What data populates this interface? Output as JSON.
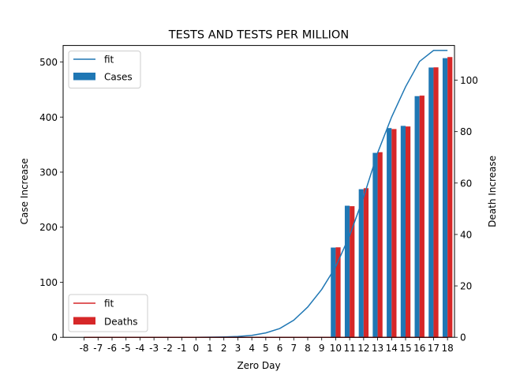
{
  "chart_data": {
    "type": "bar",
    "title": "TESTS AND TESTS PER MILLION",
    "xlabel": "Zero Day",
    "ylabel_left": "Case Increase",
    "ylabel_right": "Death Increase",
    "categories": [
      "-8",
      "-7",
      "-6",
      "-5",
      "-4",
      "-3",
      "-2",
      "-1",
      "0",
      "1",
      "2",
      "3",
      "4",
      "5",
      "6",
      "7",
      "8",
      "9",
      "10",
      "11",
      "12",
      "13",
      "14",
      "15",
      "16",
      "17",
      "18"
    ],
    "ylim_left": [
      0,
      530
    ],
    "ylim_right": [
      0,
      113.5
    ],
    "yticks_left": [
      0,
      100,
      200,
      300,
      400,
      500
    ],
    "yticks_right": [
      0,
      20,
      40,
      60,
      80,
      100
    ],
    "series": [
      {
        "name": "Cases",
        "axis": "left",
        "color": "#1f77b4",
        "values": [
          0,
          0,
          0,
          0,
          0,
          0,
          0,
          0,
          0,
          0,
          0,
          0,
          0,
          0,
          0,
          0,
          0,
          0,
          163,
          239,
          269,
          335,
          380,
          384,
          438,
          490,
          507
        ]
      },
      {
        "name": "Deaths",
        "axis": "right",
        "color": "#d62728",
        "values": [
          0,
          0,
          0,
          0,
          0,
          0,
          0,
          0,
          0,
          0,
          0,
          0,
          0,
          0,
          0,
          0,
          0,
          0,
          35,
          51,
          58,
          72,
          81,
          82,
          94,
          105,
          109
        ]
      },
      {
        "name": "fit",
        "type": "line",
        "axis": "left",
        "color": "#1f77b4",
        "values": [
          0,
          0,
          0,
          0,
          0,
          0,
          0,
          0,
          0,
          0.2,
          0.6,
          1.5,
          3.5,
          8,
          16,
          31,
          55,
          87,
          128,
          185,
          255,
          335,
          400,
          455,
          501,
          521,
          521
        ]
      },
      {
        "name": "fit",
        "type": "line",
        "axis": "right",
        "color": "#d62728",
        "values": [
          0,
          0,
          0,
          0,
          0,
          0,
          0,
          0,
          0,
          0,
          0,
          0,
          0,
          0,
          0,
          0,
          0,
          0,
          0,
          0,
          0,
          0,
          0,
          0,
          0,
          0,
          0
        ]
      }
    ],
    "legend_left": {
      "position": "upper left",
      "entries": [
        "fit",
        "Cases"
      ]
    },
    "legend_right": {
      "position": "lower left",
      "entries": [
        "fit",
        "Deaths"
      ]
    },
    "grid": false
  }
}
